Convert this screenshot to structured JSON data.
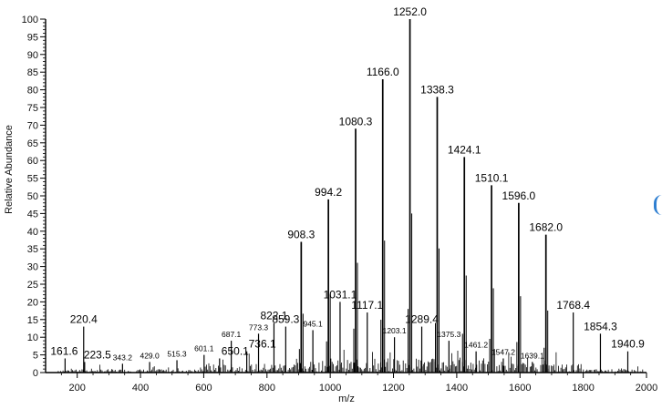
{
  "chart_data": {
    "type": "bar",
    "title": "",
    "xlabel": "m/z",
    "ylabel": "Relative Abundance",
    "xlim": [
      100,
      2000
    ],
    "ylim": [
      0,
      100
    ],
    "x_ticks": [
      "200",
      "400",
      "600",
      "800",
      "1000",
      "1200",
      "1400",
      "1600",
      "1800",
      "2000"
    ],
    "y_ticks": [
      "0",
      "5",
      "10",
      "15",
      "20",
      "25",
      "30",
      "35",
      "40",
      "45",
      "50",
      "55",
      "60",
      "65",
      "70",
      "75",
      "80",
      "85",
      "90",
      "95",
      "100"
    ],
    "peaks": [
      {
        "mz": 161.6,
        "label": "161.6",
        "intensity": 4
      },
      {
        "mz": 220.4,
        "label": "220.4",
        "intensity": 13
      },
      {
        "mz": 223.5,
        "label": "223.5",
        "intensity": 3
      },
      {
        "mz": 343.2,
        "label": "343.2",
        "intensity": 2.5
      },
      {
        "mz": 429.0,
        "label": "429.0",
        "intensity": 3
      },
      {
        "mz": 515.3,
        "label": "515.3",
        "intensity": 3.5
      },
      {
        "mz": 601.1,
        "label": "601.1",
        "intensity": 5
      },
      {
        "mz": 650.1,
        "label": "650.1",
        "intensity": 4
      },
      {
        "mz": 687.1,
        "label": "687.1",
        "intensity": 9
      },
      {
        "mz": 736.1,
        "label": "736.1",
        "intensity": 6
      },
      {
        "mz": 773.3,
        "label": "773.3",
        "intensity": 11
      },
      {
        "mz": 822.1,
        "label": "822.1",
        "intensity": 14
      },
      {
        "mz": 859.3,
        "label": "859.3",
        "intensity": 13
      },
      {
        "mz": 908.3,
        "label": "908.3",
        "intensity": 37
      },
      {
        "mz": 945.1,
        "label": "945.1",
        "intensity": 12
      },
      {
        "mz": 994.2,
        "label": "994.2",
        "intensity": 49
      },
      {
        "mz": 1031.1,
        "label": "1031.1",
        "intensity": 20
      },
      {
        "mz": 1080.3,
        "label": "1080.3",
        "intensity": 69
      },
      {
        "mz": 1117.1,
        "label": "1117.1",
        "intensity": 17
      },
      {
        "mz": 1166.0,
        "label": "1166.0",
        "intensity": 83
      },
      {
        "mz": 1203.1,
        "label": "1203.1",
        "intensity": 10
      },
      {
        "mz": 1252.0,
        "label": "1252.0",
        "intensity": 100
      },
      {
        "mz": 1289.4,
        "label": "1289.4",
        "intensity": 13
      },
      {
        "mz": 1338.3,
        "label": "1338.3",
        "intensity": 78
      },
      {
        "mz": 1375.3,
        "label": "1375.3",
        "intensity": 9
      },
      {
        "mz": 1424.1,
        "label": "1424.1",
        "intensity": 61
      },
      {
        "mz": 1461.2,
        "label": "1461.2",
        "intensity": 6
      },
      {
        "mz": 1510.1,
        "label": "1510.1",
        "intensity": 53
      },
      {
        "mz": 1547.2,
        "label": "1547.2",
        "intensity": 4
      },
      {
        "mz": 1596.0,
        "label": "1596.0",
        "intensity": 48
      },
      {
        "mz": 1639.1,
        "label": "1639.1",
        "intensity": 3
      },
      {
        "mz": 1682.0,
        "label": "1682.0",
        "intensity": 39
      },
      {
        "mz": 1768.4,
        "label": "1768.4",
        "intensity": 17
      },
      {
        "mz": 1854.3,
        "label": "1854.3",
        "intensity": 11
      },
      {
        "mz": 1940.9,
        "label": "1940.9",
        "intensity": 6
      }
    ]
  }
}
